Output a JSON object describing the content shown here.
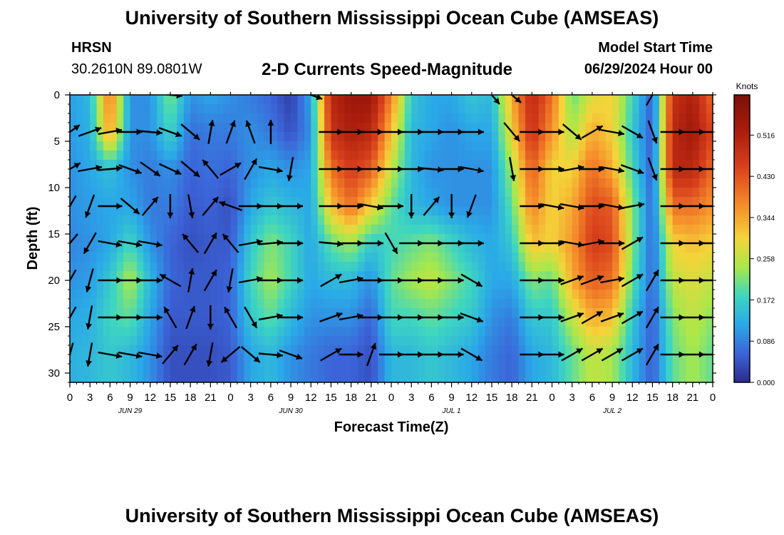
{
  "page": {
    "title": "University of Southern Mississippi Ocean Cube (AMSEAS)",
    "footer_title": "University of Southern Mississippi Ocean Cube (AMSEAS)",
    "station": "HRSN",
    "coordinates": "30.2610N  89.0801W",
    "subtitle": "2-D Currents Speed-Magnitude",
    "model_start_label": "Model Start Time",
    "model_start_value": "06/29/2024 Hour 00"
  },
  "chart_data": {
    "type": "heatmap",
    "title": "2-D Currents Speed-Magnitude",
    "xlabel": "Forecast Time(Z)",
    "ylabel": "Depth (ft)",
    "x_unit": "hours since 06/29/2024 00Z",
    "xlim": [
      0,
      96
    ],
    "ylim": [
      31,
      0
    ],
    "x_tick_labels": [
      "0",
      "3",
      "6",
      "9",
      "12",
      "15",
      "18",
      "21",
      "0",
      "3",
      "6",
      "9",
      "12",
      "15",
      "18",
      "21",
      "0",
      "3",
      "6",
      "9",
      "12",
      "15",
      "18",
      "21",
      "0",
      "3",
      "6",
      "9",
      "12",
      "15",
      "18",
      "21",
      "0"
    ],
    "date_labels": [
      {
        "text": "JUN 29",
        "hour": 9
      },
      {
        "text": "JUN 30",
        "hour": 33
      },
      {
        "text": "JUL 1",
        "hour": 57
      },
      {
        "text": "JUL 2",
        "hour": 81
      }
    ],
    "y_ticks": [
      0,
      5,
      10,
      15,
      20,
      25,
      30
    ],
    "colorbar": {
      "unit": "Knots",
      "tick_labels": [
        "0.000",
        "0.086",
        "0.172",
        "0.258",
        "0.344",
        "0.430",
        "0.516"
      ],
      "range": [
        0,
        0.6
      ]
    },
    "speed_profile": [
      {
        "hour": 0,
        "speed": [
          0.11,
          0.11,
          0.1,
          0.1,
          0.09,
          0.1,
          0.12,
          0.13
        ]
      },
      {
        "hour": 3,
        "speed": [
          0.14,
          0.13,
          0.12,
          0.11,
          0.1,
          0.11,
          0.13,
          0.14
        ]
      },
      {
        "hour": 6,
        "speed": [
          0.4,
          0.36,
          0.15,
          0.12,
          0.12,
          0.16,
          0.18,
          0.16
        ]
      },
      {
        "hour": 9,
        "speed": [
          0.1,
          0.1,
          0.1,
          0.12,
          0.18,
          0.25,
          0.2,
          0.14
        ]
      },
      {
        "hour": 12,
        "speed": [
          0.1,
          0.1,
          0.08,
          0.08,
          0.1,
          0.14,
          0.12,
          0.1
        ]
      },
      {
        "hour": 15,
        "speed": [
          0.22,
          0.18,
          0.1,
          0.08,
          0.06,
          0.06,
          0.05,
          0.04
        ]
      },
      {
        "hour": 18,
        "speed": [
          0.1,
          0.07,
          0.06,
          0.05,
          0.04,
          0.05,
          0.05,
          0.04
        ]
      },
      {
        "hour": 21,
        "speed": [
          0.12,
          0.08,
          0.07,
          0.06,
          0.05,
          0.05,
          0.05,
          0.04
        ]
      },
      {
        "hour": 24,
        "speed": [
          0.1,
          0.08,
          0.06,
          0.04,
          0.05,
          0.06,
          0.06,
          0.05
        ]
      },
      {
        "hour": 27,
        "speed": [
          0.08,
          0.1,
          0.1,
          0.12,
          0.16,
          0.18,
          0.16,
          0.12
        ]
      },
      {
        "hour": 30,
        "speed": [
          0.06,
          0.08,
          0.12,
          0.16,
          0.22,
          0.24,
          0.2,
          0.14
        ]
      },
      {
        "hour": 33,
        "speed": [
          0.02,
          0.04,
          0.1,
          0.14,
          0.18,
          0.18,
          0.14,
          0.1
        ]
      },
      {
        "hour": 36,
        "speed": [
          0.12,
          0.1,
          0.12,
          0.12,
          0.12,
          0.12,
          0.1,
          0.08
        ]
      },
      {
        "hour": 39,
        "speed": [
          0.5,
          0.48,
          0.4,
          0.32,
          0.2,
          0.14,
          0.1,
          0.06
        ]
      },
      {
        "hour": 42,
        "speed": [
          0.55,
          0.52,
          0.46,
          0.4,
          0.24,
          0.14,
          0.1,
          0.06
        ]
      },
      {
        "hour": 45,
        "speed": [
          0.55,
          0.5,
          0.42,
          0.3,
          0.16,
          0.1,
          0.06,
          0.04
        ]
      },
      {
        "hour": 48,
        "speed": [
          0.38,
          0.32,
          0.26,
          0.2,
          0.18,
          0.2,
          0.18,
          0.14
        ]
      },
      {
        "hour": 51,
        "speed": [
          0.16,
          0.14,
          0.14,
          0.14,
          0.2,
          0.24,
          0.18,
          0.14
        ]
      },
      {
        "hour": 54,
        "speed": [
          0.12,
          0.12,
          0.1,
          0.12,
          0.22,
          0.26,
          0.2,
          0.16
        ]
      },
      {
        "hour": 57,
        "speed": [
          0.12,
          0.1,
          0.1,
          0.1,
          0.18,
          0.22,
          0.18,
          0.14
        ]
      },
      {
        "hour": 60,
        "speed": [
          0.16,
          0.12,
          0.1,
          0.1,
          0.14,
          0.18,
          0.16,
          0.12
        ]
      },
      {
        "hour": 63,
        "speed": [
          0.14,
          0.12,
          0.1,
          0.1,
          0.12,
          0.12,
          0.1,
          0.08
        ]
      },
      {
        "hour": 66,
        "speed": [
          0.34,
          0.3,
          0.24,
          0.2,
          0.16,
          0.12,
          0.08,
          0.06
        ]
      },
      {
        "hour": 69,
        "speed": [
          0.5,
          0.48,
          0.42,
          0.38,
          0.32,
          0.22,
          0.16,
          0.12
        ]
      },
      {
        "hour": 72,
        "speed": [
          0.4,
          0.36,
          0.3,
          0.3,
          0.3,
          0.2,
          0.16,
          0.14
        ]
      },
      {
        "hour": 75,
        "speed": [
          0.2,
          0.24,
          0.3,
          0.34,
          0.36,
          0.34,
          0.26,
          0.2
        ]
      },
      {
        "hour": 78,
        "speed": [
          0.28,
          0.34,
          0.4,
          0.44,
          0.46,
          0.42,
          0.34,
          0.26
        ]
      },
      {
        "hour": 81,
        "speed": [
          0.3,
          0.3,
          0.34,
          0.42,
          0.44,
          0.4,
          0.32,
          0.24
        ]
      },
      {
        "hour": 84,
        "speed": [
          0.18,
          0.16,
          0.18,
          0.22,
          0.22,
          0.2,
          0.16,
          0.14
        ]
      },
      {
        "hour": 87,
        "speed": [
          0.05,
          0.05,
          0.05,
          0.06,
          0.06,
          0.06,
          0.05,
          0.05
        ]
      },
      {
        "hour": 90,
        "speed": [
          0.48,
          0.5,
          0.5,
          0.4,
          0.3,
          0.26,
          0.22,
          0.2
        ]
      },
      {
        "hour": 93,
        "speed": [
          0.52,
          0.54,
          0.5,
          0.4,
          0.32,
          0.28,
          0.26,
          0.24
        ]
      },
      {
        "hour": 96,
        "speed": [
          0.4,
          0.44,
          0.4,
          0.36,
          0.3,
          0.26,
          0.22,
          0.2
        ]
      }
    ],
    "speed_profile_depths_ft": [
      0,
      4,
      8,
      12,
      16,
      20,
      24,
      28
    ],
    "current_vectors": [
      {
        "hour": 0,
        "dirs": [
          null,
          55,
          60,
          210,
          220,
          210,
          210,
          195
        ]
      },
      {
        "hour": 3,
        "dirs": [
          null,
          70,
          80,
          200,
          210,
          195,
          190,
          190
        ]
      },
      {
        "hour": 6,
        "dirs": [
          null,
          80,
          85,
          90,
          100,
          90,
          90,
          100
        ]
      },
      {
        "hour": 9,
        "dirs": [
          null,
          90,
          110,
          130,
          100,
          90,
          90,
          100
        ]
      },
      {
        "hour": 12,
        "dirs": [
          null,
          95,
          125,
          40,
          100,
          90,
          90,
          100
        ]
      },
      {
        "hour": 15,
        "dirs": [
          95,
          110,
          115,
          180,
          null,
          300,
          330,
          40
        ]
      },
      {
        "hour": 18,
        "dirs": [
          null,
          130,
          130,
          170,
          320,
          10,
          20,
          30
        ]
      },
      {
        "hour": 21,
        "dirs": [
          null,
          10,
          320,
          40,
          30,
          30,
          180,
          190
        ]
      },
      {
        "hour": 24,
        "dirs": [
          null,
          20,
          60,
          290,
          320,
          190,
          330,
          230
        ]
      },
      {
        "hour": 27,
        "dirs": [
          null,
          340,
          30,
          90,
          80,
          80,
          150,
          130
        ]
      },
      {
        "hour": 30,
        "dirs": [
          null,
          0,
          100,
          90,
          85,
          90,
          80,
          95
        ]
      },
      {
        "hour": 33,
        "dirs": [
          null,
          null,
          190,
          90,
          90,
          90,
          90,
          110
        ]
      },
      {
        "hour": 36,
        "dirs": [
          110,
          null,
          null,
          null,
          null,
          null,
          null,
          null
        ]
      },
      {
        "hour": 39,
        "dirs": [
          null,
          90,
          90,
          90,
          95,
          60,
          70,
          60
        ]
      },
      {
        "hour": 42,
        "dirs": [
          null,
          90,
          90,
          90,
          90,
          80,
          80,
          90
        ]
      },
      {
        "hour": 45,
        "dirs": [
          null,
          90,
          90,
          100,
          90,
          90,
          90,
          20
        ]
      },
      {
        "hour": 48,
        "dirs": [
          null,
          90,
          90,
          90,
          150,
          90,
          90,
          90
        ]
      },
      {
        "hour": 51,
        "dirs": [
          null,
          90,
          90,
          180,
          90,
          90,
          90,
          90
        ]
      },
      {
        "hour": 54,
        "dirs": [
          null,
          90,
          95,
          40,
          90,
          90,
          90,
          90
        ]
      },
      {
        "hour": 57,
        "dirs": [
          null,
          90,
          90,
          180,
          90,
          90,
          90,
          90
        ]
      },
      {
        "hour": 60,
        "dirs": [
          null,
          90,
          100,
          200,
          90,
          120,
          110,
          120
        ]
      },
      {
        "hour": 63,
        "dirs": [
          140,
          null,
          null,
          null,
          null,
          null,
          null,
          null
        ]
      },
      {
        "hour": 66,
        "dirs": [
          130,
          140,
          170,
          null,
          null,
          null,
          null,
          null
        ]
      },
      {
        "hour": 69,
        "dirs": [
          null,
          90,
          90,
          90,
          90,
          90,
          90,
          90
        ]
      },
      {
        "hour": 72,
        "dirs": [
          null,
          90,
          90,
          100,
          90,
          90,
          90,
          90
        ]
      },
      {
        "hour": 75,
        "dirs": [
          null,
          130,
          80,
          100,
          100,
          70,
          70,
          60
        ]
      },
      {
        "hour": 78,
        "dirs": [
          null,
          60,
          90,
          90,
          80,
          70,
          60,
          60
        ]
      },
      {
        "hour": 81,
        "dirs": [
          null,
          100,
          100,
          100,
          90,
          80,
          70,
          60
        ]
      },
      {
        "hour": 84,
        "dirs": [
          null,
          120,
          110,
          80,
          60,
          60,
          60,
          60
        ]
      },
      {
        "hour": 87,
        "dirs": [
          30,
          160,
          160,
          null,
          null,
          30,
          30,
          30
        ]
      },
      {
        "hour": 90,
        "dirs": [
          null,
          90,
          90,
          90,
          90,
          90,
          90,
          90
        ]
      },
      {
        "hour": 93,
        "dirs": [
          null,
          90,
          90,
          90,
          90,
          90,
          90,
          90
        ]
      },
      {
        "hour": 96,
        "dirs": [
          null,
          90,
          90,
          90,
          90,
          90,
          90,
          90
        ]
      }
    ]
  }
}
